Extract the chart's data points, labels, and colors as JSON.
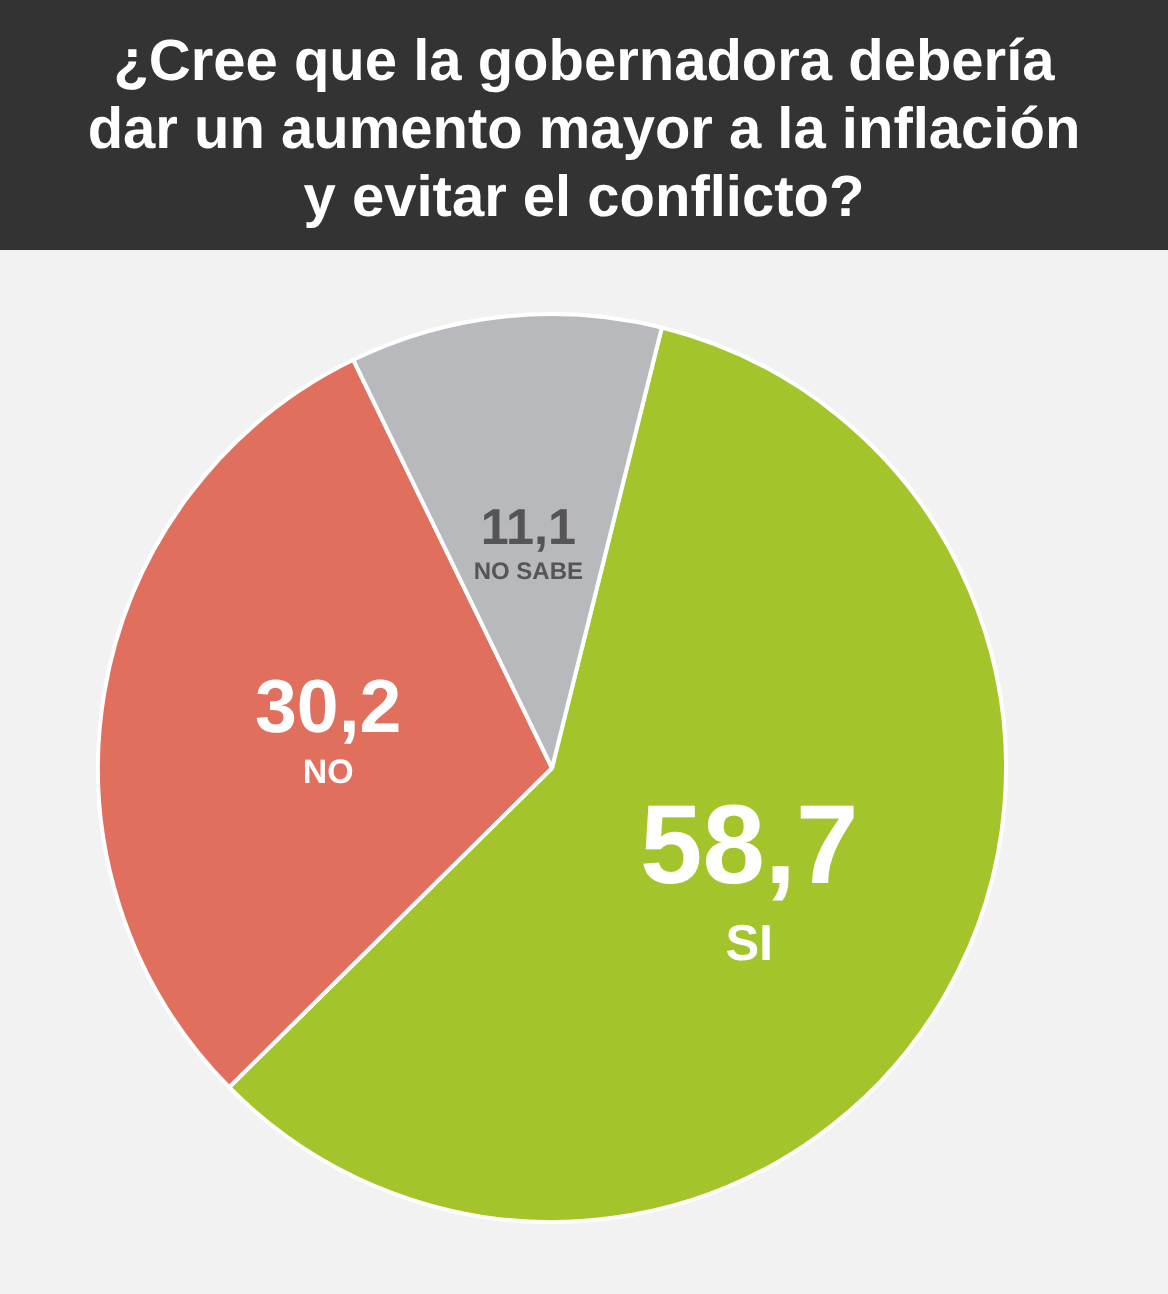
{
  "chart_data": {
    "type": "pie",
    "title": "¿Cree que la gobernadora debería dar un aumento mayor a la inflación y evitar el conflicto?",
    "categories": [
      "SI",
      "NO",
      "NO SABE"
    ],
    "values": [
      58.7,
      30.2,
      11.1
    ],
    "value_labels": [
      "58,7",
      "30,2",
      "11,1"
    ],
    "colors": [
      "#a3c52b",
      "#e06f5e",
      "#b8b9bd"
    ],
    "legend": false
  }
}
